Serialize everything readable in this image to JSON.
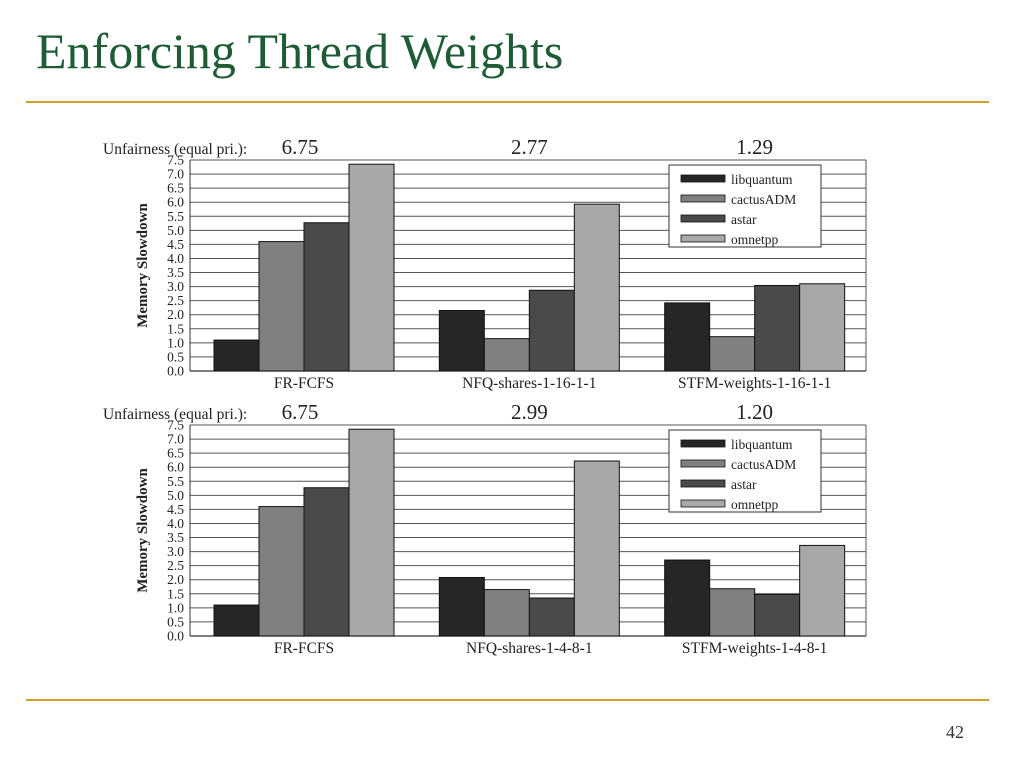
{
  "slide": {
    "title": "Enforcing Thread Weights",
    "page_number": "42",
    "accent_color": "#c9a227",
    "title_color": "#1e5c36"
  },
  "chart_data": [
    {
      "type": "bar",
      "unfairness_label": "Unfairness (equal pri.):",
      "unfairness_values": [
        "6.75",
        "2.77",
        "1.29"
      ],
      "categories": [
        "FR-FCFS",
        "NFQ-shares-1-16-1-1",
        "STFM-weights-1-16-1-1"
      ],
      "ylabel": "Memory Slowdown",
      "ylim": [
        0,
        7.5
      ],
      "yticks": [
        "0.0",
        "0.5",
        "1.0",
        "1.5",
        "2.0",
        "2.5",
        "3.0",
        "3.5",
        "4.0",
        "4.5",
        "5.0",
        "5.5",
        "6.0",
        "6.5",
        "7.0",
        "7.5"
      ],
      "grid": true,
      "legend_position": "top-right",
      "series": [
        {
          "name": "libquantum",
          "color": "#262626",
          "values": [
            1.1,
            2.15,
            2.42
          ]
        },
        {
          "name": "cactusADM",
          "color": "#808080",
          "values": [
            4.6,
            1.15,
            1.22
          ]
        },
        {
          "name": "astar",
          "color": "#4a4a4a",
          "values": [
            5.27,
            2.87,
            3.04
          ]
        },
        {
          "name": "omnetpp",
          "color": "#a8a8a8",
          "values": [
            7.35,
            5.93,
            3.1
          ]
        }
      ]
    },
    {
      "type": "bar",
      "unfairness_label": "Unfairness (equal pri.):",
      "unfairness_values": [
        "6.75",
        "2.99",
        "1.20"
      ],
      "categories": [
        "FR-FCFS",
        "NFQ-shares-1-4-8-1",
        "STFM-weights-1-4-8-1"
      ],
      "ylabel": "Memory Slowdown",
      "ylim": [
        0,
        7.5
      ],
      "yticks": [
        "0.0",
        "0.5",
        "1.0",
        "1.5",
        "2.0",
        "2.5",
        "3.0",
        "3.5",
        "4.0",
        "4.5",
        "5.0",
        "5.5",
        "6.0",
        "6.5",
        "7.0",
        "7.5"
      ],
      "grid": true,
      "legend_position": "top-right",
      "series": [
        {
          "name": "libquantum",
          "color": "#262626",
          "values": [
            1.1,
            2.08,
            2.7
          ]
        },
        {
          "name": "cactusADM",
          "color": "#808080",
          "values": [
            4.6,
            1.65,
            1.68
          ]
        },
        {
          "name": "astar",
          "color": "#4a4a4a",
          "values": [
            5.27,
            1.35,
            1.48
          ]
        },
        {
          "name": "omnetpp",
          "color": "#a8a8a8",
          "values": [
            7.35,
            6.22,
            3.22
          ]
        }
      ]
    }
  ]
}
